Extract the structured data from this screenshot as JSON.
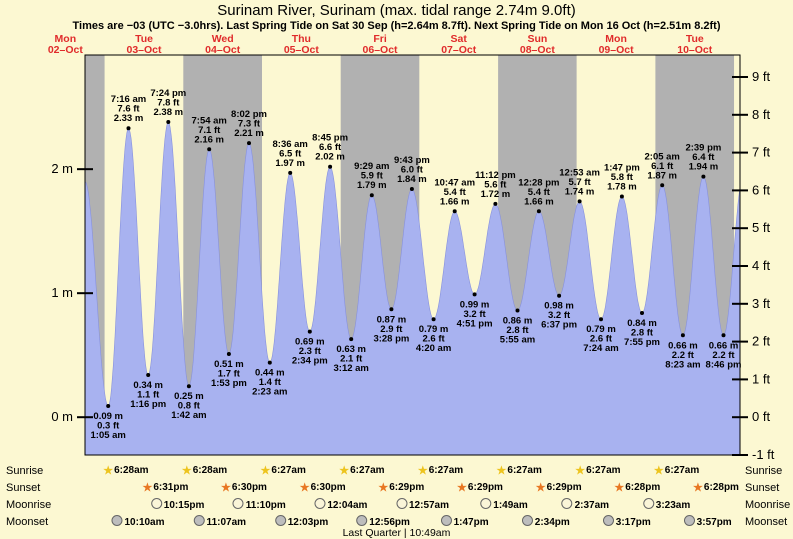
{
  "header": {
    "title": "Surinam River, Surinam (max. tidal range 2.74m 9.0ft)",
    "subtitle": "Times are −03 (UTC −3.0hrs). Last Spring Tide on Sat 30 Sep (h=2.64m 8.7ft). Next Spring Tide on Mon 16 Oct (h=2.51m 8.2ft)"
  },
  "colors": {
    "page_bg": "#FCF8D2",
    "band_gray": "#B1B1B1",
    "tide_fill": "#A8B2F0",
    "tide_edge": "#8791DD",
    "day_label_red": "#E02B2B",
    "sunrise_star": "#EDC41E",
    "sunset_star": "#E87722",
    "moonrise_fill": "#FAF5D8",
    "moonset_fill": "#BDBDBD"
  },
  "chart_data": {
    "type": "area",
    "title": "Tide height curve for Surinam River, Surinam",
    "ylabel": "tide height",
    "y_range_ft": [
      -1,
      9.6
    ],
    "grid": "alternating day bands (gray/yellow)",
    "legend": "none",
    "days": [
      {
        "name": "Mon",
        "date": "02–Oct"
      },
      {
        "name": "Tue",
        "date": "03–Oct"
      },
      {
        "name": "Wed",
        "date": "04–Oct"
      },
      {
        "name": "Thu",
        "date": "05–Oct"
      },
      {
        "name": "Fri",
        "date": "06–Oct"
      },
      {
        "name": "Sat",
        "date": "07–Oct"
      },
      {
        "name": "Sun",
        "date": "08–Oct"
      },
      {
        "name": "Mon",
        "date": "09–Oct"
      },
      {
        "name": "Tue",
        "date": "10–Oct"
      }
    ],
    "y_axis_left": {
      "unit": "m",
      "ticks": [
        {
          "value": 0,
          "label": "0 m"
        },
        {
          "value": 1,
          "label": "1 m"
        },
        {
          "value": 2,
          "label": "2 m"
        }
      ]
    },
    "y_axis_right": {
      "unit": "ft",
      "ticks": [
        {
          "value": 9,
          "label": "9 ft"
        },
        {
          "value": 8,
          "label": "8 ft"
        },
        {
          "value": 7,
          "label": "7 ft"
        },
        {
          "value": 6,
          "label": "6 ft"
        },
        {
          "value": 5,
          "label": "5 ft"
        },
        {
          "value": 4,
          "label": "4 ft"
        },
        {
          "value": 3,
          "label": "3 ft"
        },
        {
          "value": 2,
          "label": "2 ft"
        },
        {
          "value": 1,
          "label": "1 ft"
        },
        {
          "value": 0,
          "label": "0 ft"
        },
        {
          "value": -1,
          "label": "-1 ft"
        }
      ]
    },
    "tide_events": [
      {
        "t": 18.0,
        "m": 1.9,
        "kind": "high"
      },
      {
        "t": 25.083,
        "m": 0.09,
        "kind": "low",
        "label_m": "0.09 m",
        "label_ft": "0.3 ft",
        "label_time": "1:05 am"
      },
      {
        "t": 31.267,
        "m": 2.33,
        "kind": "high",
        "label_m": "2.33 m",
        "label_ft": "7.6 ft",
        "label_time": "7:16 am"
      },
      {
        "t": 37.267,
        "m": 0.34,
        "kind": "low",
        "label_m": "0.34 m",
        "label_ft": "1.1 ft",
        "label_time": "1:16 pm"
      },
      {
        "t": 43.4,
        "m": 2.38,
        "kind": "high",
        "label_m": "2.38 m",
        "label_ft": "7.8 ft",
        "label_time": "7:24 pm"
      },
      {
        "t": 49.7,
        "m": 0.25,
        "kind": "low",
        "label_m": "0.25 m",
        "label_ft": "0.8 ft",
        "label_time": "1:42 am"
      },
      {
        "t": 55.9,
        "m": 2.16,
        "kind": "high",
        "label_m": "2.16 m",
        "label_ft": "7.1 ft",
        "label_time": "7:54 am"
      },
      {
        "t": 61.883,
        "m": 0.51,
        "kind": "low",
        "label_m": "0.51 m",
        "label_ft": "1.7 ft",
        "label_time": "1:53 pm"
      },
      {
        "t": 68.033,
        "m": 2.21,
        "kind": "high",
        "label_m": "2.21 m",
        "label_ft": "7.3 ft",
        "label_time": "8:02 pm"
      },
      {
        "t": 74.383,
        "m": 0.44,
        "kind": "low",
        "label_m": "0.44 m",
        "label_ft": "1.4 ft",
        "label_time": "2:23 am"
      },
      {
        "t": 80.6,
        "m": 1.97,
        "kind": "high",
        "label_m": "1.97 m",
        "label_ft": "6.5 ft",
        "label_time": "8:36 am"
      },
      {
        "t": 86.567,
        "m": 0.69,
        "kind": "low",
        "label_m": "0.69 m",
        "label_ft": "2.3 ft",
        "label_time": "2:34 pm"
      },
      {
        "t": 92.75,
        "m": 2.02,
        "kind": "high",
        "label_m": "2.02 m",
        "label_ft": "6.6 ft",
        "label_time": "8:45 pm"
      },
      {
        "t": 99.2,
        "m": 0.63,
        "kind": "low",
        "label_m": "0.63 m",
        "label_ft": "2.1 ft",
        "label_time": "3:12 am"
      },
      {
        "t": 105.483,
        "m": 1.79,
        "kind": "high",
        "label_m": "1.79 m",
        "label_ft": "5.9 ft",
        "label_time": "9:29 am"
      },
      {
        "t": 111.467,
        "m": 0.87,
        "kind": "low",
        "label_m": "0.87 m",
        "label_ft": "2.9 ft",
        "label_time": "3:28 pm"
      },
      {
        "t": 117.717,
        "m": 1.84,
        "kind": "high",
        "label_m": "1.84 m",
        "label_ft": "6.0 ft",
        "label_time": "9:43 pm"
      },
      {
        "t": 124.333,
        "m": 0.79,
        "kind": "low",
        "label_m": "0.79 m",
        "label_ft": "2.6 ft",
        "label_time": "4:20 am"
      },
      {
        "t": 130.783,
        "m": 1.66,
        "kind": "high",
        "label_m": "1.66 m",
        "label_ft": "5.4 ft",
        "label_time": "10:47 am"
      },
      {
        "t": 136.85,
        "m": 0.99,
        "kind": "low",
        "label_m": "0.99 m",
        "label_ft": "3.2 ft",
        "label_time": "4:51 pm"
      },
      {
        "t": 143.2,
        "m": 1.72,
        "kind": "high",
        "label_m": "1.72 m",
        "label_ft": "5.6 ft",
        "label_time": "11:12 pm"
      },
      {
        "t": 149.917,
        "m": 0.86,
        "kind": "low",
        "label_m": "0.86 m",
        "label_ft": "2.8 ft",
        "label_time": "5:55 am"
      },
      {
        "t": 156.467,
        "m": 1.66,
        "kind": "high",
        "label_m": "1.66 m",
        "label_ft": "5.4 ft",
        "label_time": "12:28 pm"
      },
      {
        "t": 162.617,
        "m": 0.98,
        "kind": "low",
        "label_m": "0.98 m",
        "label_ft": "3.2 ft",
        "label_time": "6:37 pm"
      },
      {
        "t": 168.883,
        "m": 1.74,
        "kind": "high",
        "label_m": "1.74 m",
        "label_ft": "5.7 ft",
        "label_time": "12:53 am"
      },
      {
        "t": 175.4,
        "m": 0.79,
        "kind": "low",
        "label_m": "0.79 m",
        "label_ft": "2.6 ft",
        "label_time": "7:24 am"
      },
      {
        "t": 181.783,
        "m": 1.78,
        "kind": "high",
        "label_m": "1.78 m",
        "label_ft": "5.8 ft",
        "label_time": "1:47 pm"
      },
      {
        "t": 187.917,
        "m": 0.84,
        "kind": "low",
        "label_m": "0.84 m",
        "label_ft": "2.8 ft",
        "label_time": "7:55 pm"
      },
      {
        "t": 194.083,
        "m": 1.87,
        "kind": "high",
        "label_m": "1.87 m",
        "label_ft": "6.1 ft",
        "label_time": "2:05 am"
      },
      {
        "t": 200.383,
        "m": 0.66,
        "kind": "low",
        "label_m": "0.66 m",
        "label_ft": "2.2 ft",
        "label_time": "8:23 am"
      },
      {
        "t": 206.65,
        "m": 1.94,
        "kind": "high",
        "label_m": "1.94 m",
        "label_ft": "6.4 ft",
        "label_time": "2:39 pm"
      },
      {
        "t": 212.767,
        "m": 0.66,
        "kind": "low",
        "label_m": "0.66 m",
        "label_ft": "2.2 ft",
        "label_time": "8:46 pm"
      },
      {
        "t": 218.9,
        "m": 1.95,
        "kind": "high"
      }
    ]
  },
  "astro": {
    "rows": [
      {
        "label": "Sunrise",
        "icon": "sunrise-star-icon",
        "entries": [
          {
            "t": 30.467,
            "time": "6:28am"
          },
          {
            "t": 54.467,
            "time": "6:28am"
          },
          {
            "t": 78.45,
            "time": "6:27am"
          },
          {
            "t": 102.45,
            "time": "6:27am"
          },
          {
            "t": 126.45,
            "time": "6:27am"
          },
          {
            "t": 150.45,
            "time": "6:27am"
          },
          {
            "t": 174.45,
            "time": "6:27am"
          },
          {
            "t": 198.45,
            "time": "6:27am"
          }
        ]
      },
      {
        "label": "Sunset",
        "icon": "sunset-star-icon",
        "entries": [
          {
            "t": 42.517,
            "time": "6:31pm"
          },
          {
            "t": 66.5,
            "time": "6:30pm"
          },
          {
            "t": 90.5,
            "time": "6:30pm"
          },
          {
            "t": 114.483,
            "time": "6:29pm"
          },
          {
            "t": 138.483,
            "time": "6:29pm"
          },
          {
            "t": 162.483,
            "time": "6:29pm"
          },
          {
            "t": 186.467,
            "time": "6:28pm"
          },
          {
            "t": 210.467,
            "time": "6:28pm"
          }
        ]
      },
      {
        "label": "Moonrise",
        "icon": "moonrise-moon-icon",
        "entries": [
          {
            "t": 46.25,
            "time": "10:15pm"
          },
          {
            "t": 71.167,
            "time": "11:10pm"
          },
          {
            "t": 96.067,
            "time": "12:04am"
          },
          {
            "t": 120.95,
            "time": "12:57am"
          },
          {
            "t": 145.817,
            "time": "1:49am"
          },
          {
            "t": 170.617,
            "time": "2:37am"
          },
          {
            "t": 195.383,
            "time": "3:23am"
          }
        ]
      },
      {
        "label": "Moonset",
        "icon": "moonset-moon-icon",
        "entries": [
          {
            "t": 34.167,
            "time": "10:10am"
          },
          {
            "t": 59.117,
            "time": "11:07am"
          },
          {
            "t": 84.05,
            "time": "12:03pm"
          },
          {
            "t": 108.933,
            "time": "12:56pm"
          },
          {
            "t": 133.783,
            "time": "1:47pm"
          },
          {
            "t": 158.567,
            "time": "2:34pm"
          },
          {
            "t": 183.283,
            "time": "3:17pm"
          },
          {
            "t": 207.95,
            "time": "3:57pm"
          }
        ]
      }
    ],
    "moon_phase_note": "Last Quarter | 10:49am"
  }
}
